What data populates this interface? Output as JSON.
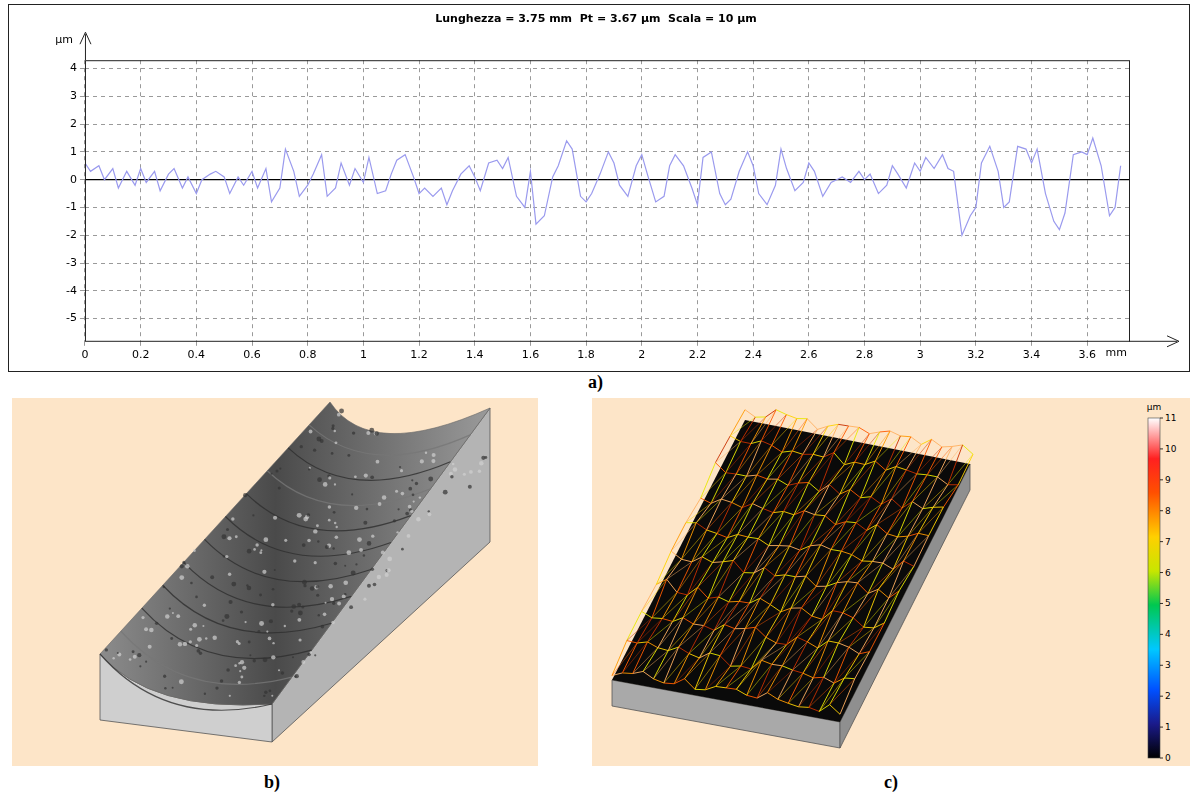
{
  "chart_data": {
    "type": "line",
    "title": "Lunghezza = 3.75 mm  Pt = 3.67 µm  Scala = 10 µm",
    "x_label": "mm",
    "y_label": "µm",
    "x": [
      0,
      0.02,
      0.05,
      0.07,
      0.1,
      0.12,
      0.15,
      0.18,
      0.2,
      0.22,
      0.25,
      0.27,
      0.3,
      0.32,
      0.35,
      0.37,
      0.4,
      0.42,
      0.45,
      0.47,
      0.5,
      0.52,
      0.55,
      0.57,
      0.6,
      0.62,
      0.65,
      0.67,
      0.7,
      0.72,
      0.75,
      0.77,
      0.8,
      0.82,
      0.85,
      0.87,
      0.9,
      0.92,
      0.95,
      0.97,
      1,
      1.02,
      1.05,
      1.08,
      1.1,
      1.12,
      1.15,
      1.18,
      1.2,
      1.22,
      1.25,
      1.28,
      1.3,
      1.32,
      1.35,
      1.38,
      1.4,
      1.42,
      1.45,
      1.48,
      1.5,
      1.52,
      1.55,
      1.58,
      1.6,
      1.62,
      1.65,
      1.68,
      1.7,
      1.73,
      1.75,
      1.78,
      1.8,
      1.82,
      1.85,
      1.88,
      1.9,
      1.92,
      1.95,
      1.98,
      2,
      2.02,
      2.05,
      2.08,
      2.1,
      2.12,
      2.15,
      2.18,
      2.2,
      2.22,
      2.25,
      2.28,
      2.3,
      2.32,
      2.35,
      2.38,
      2.4,
      2.42,
      2.45,
      2.48,
      2.5,
      2.52,
      2.55,
      2.58,
      2.6,
      2.62,
      2.65,
      2.68,
      2.7,
      2.72,
      2.75,
      2.78,
      2.8,
      2.82,
      2.85,
      2.88,
      2.9,
      2.92,
      2.95,
      2.98,
      3,
      3.02,
      3.05,
      3.08,
      3.1,
      3.12,
      3.15,
      3.18,
      3.2,
      3.22,
      3.25,
      3.28,
      3.3,
      3.32,
      3.35,
      3.38,
      3.4,
      3.42,
      3.45,
      3.48,
      3.5,
      3.52,
      3.55,
      3.58,
      3.6,
      3.62,
      3.65,
      3.68,
      3.7,
      3.72
    ],
    "values": [
      0.6,
      0.3,
      0.5,
      0,
      0.4,
      -0.3,
      0.3,
      -0.2,
      0.4,
      -0.1,
      0.3,
      -0.4,
      0.2,
      0.4,
      -0.3,
      0.1,
      -0.5,
      0,
      0.2,
      0.3,
      0.1,
      -0.5,
      0.1,
      -0.2,
      0.3,
      -0.3,
      0.4,
      -0.8,
      -0.3,
      1.1,
      0.3,
      -0.6,
      -0.2,
      0.2,
      0.9,
      -0.6,
      -0.3,
      0.6,
      -0.2,
      0.4,
      -0.1,
      0.8,
      -0.5,
      -0.4,
      0.2,
      0.7,
      0.9,
      0.1,
      -0.5,
      -0.3,
      -0.6,
      -0.3,
      -0.9,
      -0.4,
      0.2,
      0.5,
      0.1,
      -0.4,
      0.6,
      0.7,
      0.4,
      0.8,
      -0.6,
      -1,
      0.3,
      -1.6,
      -1.3,
      0.1,
      0.5,
      1.4,
      1.1,
      -0.6,
      -0.8,
      -0.5,
      0.2,
      1,
      0.6,
      -0.2,
      -0.6,
      0.5,
      0.9,
      0.2,
      -0.8,
      -0.6,
      0.5,
      0.9,
      0.5,
      -0.3,
      -0.9,
      0.8,
      1,
      -0.5,
      -0.9,
      -0.7,
      0.3,
      1,
      0.5,
      -0.5,
      -0.9,
      -0.2,
      1.1,
      0.4,
      -0.4,
      -0.1,
      0.6,
      0.3,
      -0.6,
      -0.1,
      0,
      0.1,
      -0.1,
      0.3,
      0,
      0.2,
      -0.5,
      -0.2,
      0.5,
      0.2,
      -0.3,
      0.6,
      0.3,
      0.8,
      0.4,
      0.9,
      0.4,
      0.3,
      -2,
      -1.3,
      -1,
      0.6,
      1.2,
      0.3,
      -1,
      -0.8,
      1.2,
      1.1,
      0.6,
      1.1,
      -0.5,
      -1.5,
      -1.8,
      -1.2,
      0.9,
      1,
      0.9,
      1.5,
      0.5,
      -1.3,
      -1,
      0.5
    ],
    "color": "#9a9aee",
    "xlim": [
      0,
      3.75
    ],
    "ylim": [
      -5.8,
      4.3
    ],
    "xticks": [
      0,
      0.2,
      0.4,
      0.6,
      0.8,
      1,
      1.2,
      1.4,
      1.6,
      1.8,
      2,
      2.2,
      2.4,
      2.6,
      2.8,
      3,
      3.2,
      3.4,
      3.6
    ],
    "yticks": [
      -5,
      -4,
      -3,
      -2,
      -1,
      0,
      1,
      2,
      3,
      4
    ],
    "grid": true
  },
  "panel_labels": [
    "a)",
    "b)",
    "c)"
  ],
  "colorbar": {
    "label": "µm",
    "range": [
      0,
      11
    ],
    "ticks": [
      0,
      1,
      2,
      3,
      4,
      5,
      6,
      7,
      8,
      9,
      10,
      11
    ]
  }
}
